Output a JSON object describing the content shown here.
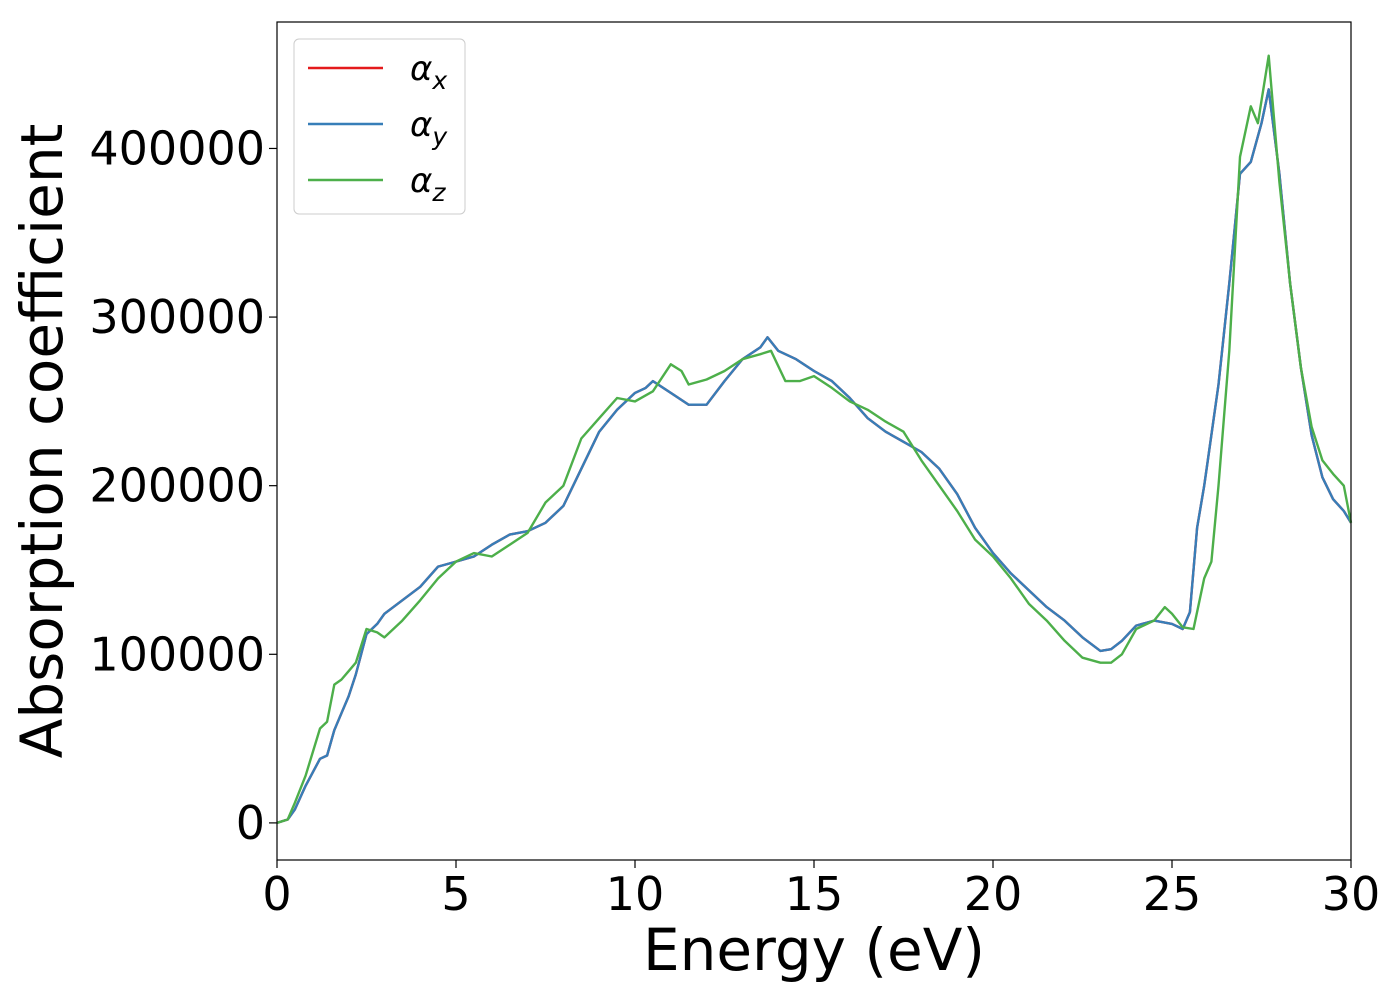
{
  "chart_data": {
    "type": "line",
    "title": "",
    "xlabel": "Energy (eV)",
    "ylabel": "Absorption coefficient",
    "xlim": [
      0,
      30
    ],
    "ylim": [
      -22000,
      475000
    ],
    "xticks": [
      "0",
      "5",
      "10",
      "15",
      "20",
      "25",
      "30"
    ],
    "yticks": [
      "0",
      "100000",
      "200000",
      "300000",
      "400000"
    ],
    "grid": false,
    "legend_position": "top-left",
    "legend": [
      {
        "symbol": "α",
        "subscript": "x",
        "color": "#e41a1c"
      },
      {
        "symbol": "α",
        "subscript": "y",
        "color": "#377eb8"
      },
      {
        "symbol": "α",
        "subscript": "z",
        "color": "#4daf4a"
      }
    ],
    "series": [
      {
        "name": "αx",
        "color": "#e41a1c",
        "x": [
          0,
          0.3,
          0.5,
          0.8,
          1.0,
          1.2,
          1.4,
          1.6,
          1.8,
          2.0,
          2.2,
          2.5,
          2.8,
          3.0,
          3.5,
          4.0,
          4.5,
          5.0,
          5.5,
          6.0,
          6.5,
          7.0,
          7.5,
          8.0,
          8.5,
          9.0,
          9.5,
          10.0,
          10.3,
          10.5,
          11.0,
          11.5,
          12.0,
          12.5,
          13.0,
          13.5,
          13.7,
          14.0,
          14.5,
          15.0,
          15.5,
          16.0,
          16.5,
          17.0,
          17.5,
          18.0,
          18.5,
          19.0,
          19.5,
          20.0,
          20.5,
          21.0,
          21.5,
          22.0,
          22.5,
          23.0,
          23.3,
          23.6,
          24.0,
          24.5,
          25.0,
          25.3,
          25.5,
          25.7,
          25.9,
          26.0,
          26.3,
          26.6,
          26.9,
          27.2,
          27.5,
          27.7,
          28.0,
          28.3,
          28.6,
          28.9,
          29.2,
          29.5,
          29.8,
          30.0
        ],
        "y": [
          0,
          2000,
          8000,
          22000,
          30000,
          38000,
          40000,
          55000,
          65000,
          75000,
          88000,
          112000,
          118000,
          124000,
          132000,
          140000,
          152000,
          155000,
          158000,
          165000,
          171000,
          173000,
          178000,
          188000,
          210000,
          232000,
          245000,
          255000,
          258000,
          262000,
          255000,
          248000,
          248000,
          262000,
          275000,
          282000,
          288000,
          280000,
          275000,
          268000,
          262000,
          252000,
          240000,
          232000,
          226000,
          220000,
          210000,
          195000,
          175000,
          160000,
          148000,
          138000,
          128000,
          120000,
          110000,
          102000,
          103000,
          108000,
          117000,
          120000,
          118000,
          115000,
          125000,
          175000,
          200000,
          215000,
          260000,
          320000,
          385000,
          392000,
          415000,
          435000,
          385000,
          320000,
          270000,
          230000,
          205000,
          192000,
          185000,
          178000
        ]
      },
      {
        "name": "αy",
        "color": "#377eb8",
        "x": [
          0,
          0.3,
          0.5,
          0.8,
          1.0,
          1.2,
          1.4,
          1.6,
          1.8,
          2.0,
          2.2,
          2.5,
          2.8,
          3.0,
          3.5,
          4.0,
          4.5,
          5.0,
          5.5,
          6.0,
          6.5,
          7.0,
          7.5,
          8.0,
          8.5,
          9.0,
          9.5,
          10.0,
          10.3,
          10.5,
          11.0,
          11.5,
          12.0,
          12.5,
          13.0,
          13.5,
          13.7,
          14.0,
          14.5,
          15.0,
          15.5,
          16.0,
          16.5,
          17.0,
          17.5,
          18.0,
          18.5,
          19.0,
          19.5,
          20.0,
          20.5,
          21.0,
          21.5,
          22.0,
          22.5,
          23.0,
          23.3,
          23.6,
          24.0,
          24.5,
          25.0,
          25.3,
          25.5,
          25.7,
          25.9,
          26.0,
          26.3,
          26.6,
          26.9,
          27.2,
          27.5,
          27.7,
          28.0,
          28.3,
          28.6,
          28.9,
          29.2,
          29.5,
          29.8,
          30.0
        ],
        "y": [
          0,
          2000,
          8000,
          22000,
          30000,
          38000,
          40000,
          55000,
          65000,
          75000,
          88000,
          112000,
          118000,
          124000,
          132000,
          140000,
          152000,
          155000,
          158000,
          165000,
          171000,
          173000,
          178000,
          188000,
          210000,
          232000,
          245000,
          255000,
          258000,
          262000,
          255000,
          248000,
          248000,
          262000,
          275000,
          282000,
          288000,
          280000,
          275000,
          268000,
          262000,
          252000,
          240000,
          232000,
          226000,
          220000,
          210000,
          195000,
          175000,
          160000,
          148000,
          138000,
          128000,
          120000,
          110000,
          102000,
          103000,
          108000,
          117000,
          120000,
          118000,
          115000,
          125000,
          175000,
          200000,
          215000,
          260000,
          320000,
          385000,
          392000,
          415000,
          435000,
          385000,
          320000,
          270000,
          230000,
          205000,
          192000,
          185000,
          178000
        ]
      },
      {
        "name": "αz",
        "color": "#4daf4a",
        "x": [
          0,
          0.3,
          0.5,
          0.8,
          1.0,
          1.2,
          1.4,
          1.6,
          1.8,
          2.0,
          2.2,
          2.5,
          2.8,
          3.0,
          3.5,
          4.0,
          4.5,
          5.0,
          5.5,
          6.0,
          6.5,
          7.0,
          7.5,
          8.0,
          8.5,
          9.0,
          9.5,
          10.0,
          10.5,
          11.0,
          11.3,
          11.5,
          12.0,
          12.5,
          13.0,
          13.5,
          13.8,
          14.2,
          14.6,
          15.0,
          15.5,
          16.0,
          16.5,
          17.0,
          17.5,
          18.0,
          18.5,
          19.0,
          19.5,
          20.0,
          20.5,
          21.0,
          21.5,
          22.0,
          22.5,
          23.0,
          23.3,
          23.6,
          24.0,
          24.5,
          24.8,
          25.0,
          25.3,
          25.6,
          25.9,
          26.1,
          26.3,
          26.6,
          26.9,
          27.2,
          27.4,
          27.7,
          28.0,
          28.3,
          28.6,
          28.9,
          29.2,
          29.5,
          29.8,
          30.0
        ],
        "y": [
          0,
          2000,
          12000,
          28000,
          42000,
          56000,
          60000,
          82000,
          85000,
          90000,
          95000,
          115000,
          113000,
          110000,
          120000,
          132000,
          145000,
          155000,
          160000,
          158000,
          165000,
          172000,
          190000,
          200000,
          228000,
          240000,
          252000,
          250000,
          256000,
          272000,
          268000,
          260000,
          263000,
          268000,
          275000,
          278000,
          280000,
          262000,
          262000,
          265000,
          258000,
          250000,
          245000,
          238000,
          232000,
          215000,
          200000,
          185000,
          168000,
          158000,
          145000,
          130000,
          120000,
          108000,
          98000,
          95000,
          95000,
          100000,
          115000,
          120000,
          128000,
          124000,
          116000,
          115000,
          145000,
          155000,
          200000,
          280000,
          395000,
          425000,
          415000,
          455000,
          380000,
          320000,
          270000,
          235000,
          215000,
          207000,
          200000,
          178000
        ]
      }
    ]
  }
}
